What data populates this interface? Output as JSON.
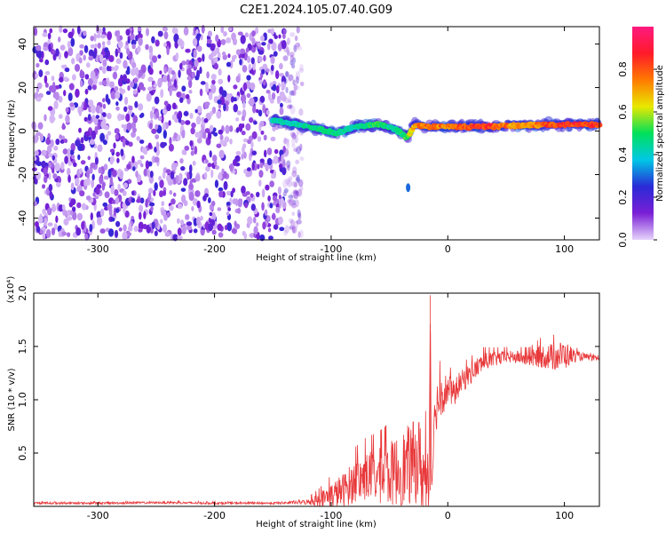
{
  "chart_data": [
    {
      "type": "heatmap",
      "title": "C2E1.2024.105.07.40.G09",
      "xlabel": "Height of straight line (km)",
      "ylabel": "Frequency (Hz)",
      "xlim": [
        -355,
        130
      ],
      "ylim": [
        -50,
        48
      ],
      "x_ticks": [
        -300,
        -200,
        -100,
        0,
        100
      ],
      "y_ticks": [
        -40,
        -20,
        0,
        20,
        40
      ],
      "colorbar": {
        "label": "Normalized spectral amplitude",
        "range": [
          0.0,
          1.0
        ],
        "ticks": [
          0.0,
          0.2,
          0.4,
          0.6,
          0.8
        ],
        "colors": [
          "#e6d4fb",
          "#7a1fd6",
          "#2a2ad6",
          "#00c8e6",
          "#00e05a",
          "#e8e800",
          "#ff7a00",
          "#ff1a2a",
          "#ff1a80"
        ]
      },
      "signal_track": {
        "x": [
          -150,
          -130,
          -110,
          -95,
          -80,
          -60,
          -45,
          -35,
          -28,
          -20,
          -10,
          0,
          30,
          60,
          90,
          120,
          130
        ],
        "freq": [
          5,
          3,
          1,
          -1,
          2,
          3,
          1,
          -3,
          3,
          2,
          2,
          2,
          2,
          2.5,
          3,
          3,
          3
        ],
        "amplitude": [
          0.45,
          0.45,
          0.5,
          0.5,
          0.45,
          0.55,
          0.45,
          0.55,
          0.75,
          0.8,
          0.8,
          0.8,
          0.9,
          0.75,
          0.85,
          0.9,
          0.9
        ]
      },
      "noise_region_x": [
        -355,
        -140
      ],
      "isolated_blob": {
        "x": -34,
        "freq": -26,
        "amplitude": 0.3
      }
    },
    {
      "type": "line",
      "xlabel": "Height of straight line (km)",
      "ylabel": "SNR (10 * v/v)",
      "y_multiplier": "(x10⁴)",
      "xlim": [
        -355,
        130
      ],
      "ylim": [
        0,
        20000
      ],
      "x_ticks": [
        -300,
        -200,
        -100,
        0,
        100
      ],
      "y_ticks": [
        5000,
        10000,
        15000,
        20000
      ],
      "y_tick_labels": [
        "0.5",
        "1.0",
        "1.5",
        "2.0"
      ],
      "color": "#e8383a",
      "series": [
        {
          "x": [
            -355,
            -300,
            -250,
            -200,
            -150,
            -130,
            -120,
            -110,
            -100,
            -90,
            -80,
            -70,
            -60,
            -50,
            -40,
            -30,
            -25,
            -20,
            -16,
            -15,
            -14,
            -12,
            -10,
            -5,
            0,
            5,
            10,
            20,
            30,
            40,
            50,
            60,
            70,
            80,
            90,
            100,
            110,
            120,
            130
          ],
          "values": [
            300,
            300,
            350,
            300,
            300,
            350,
            400,
            600,
            1000,
            1500,
            2300,
            2800,
            2800,
            3000,
            3500,
            4000,
            4500,
            2500,
            3500,
            19800,
            1500,
            7500,
            9500,
            10500,
            11000,
            10500,
            11500,
            12500,
            13500,
            13800,
            14000,
            14000,
            13800,
            14100,
            14000,
            14200,
            14100,
            14000,
            13800
          ],
          "spread": [
            100,
            100,
            100,
            100,
            100,
            150,
            250,
            700,
            1200,
            1600,
            2000,
            2300,
            2600,
            3000,
            3500,
            4000,
            4000,
            4000,
            3500,
            0,
            2500,
            1500,
            2500,
            2000,
            1500,
            1300,
            1100,
            1000,
            900,
            700,
            600,
            600,
            700,
            1100,
            1300,
            1400,
            500,
            300,
            200
          ]
        }
      ]
    }
  ]
}
